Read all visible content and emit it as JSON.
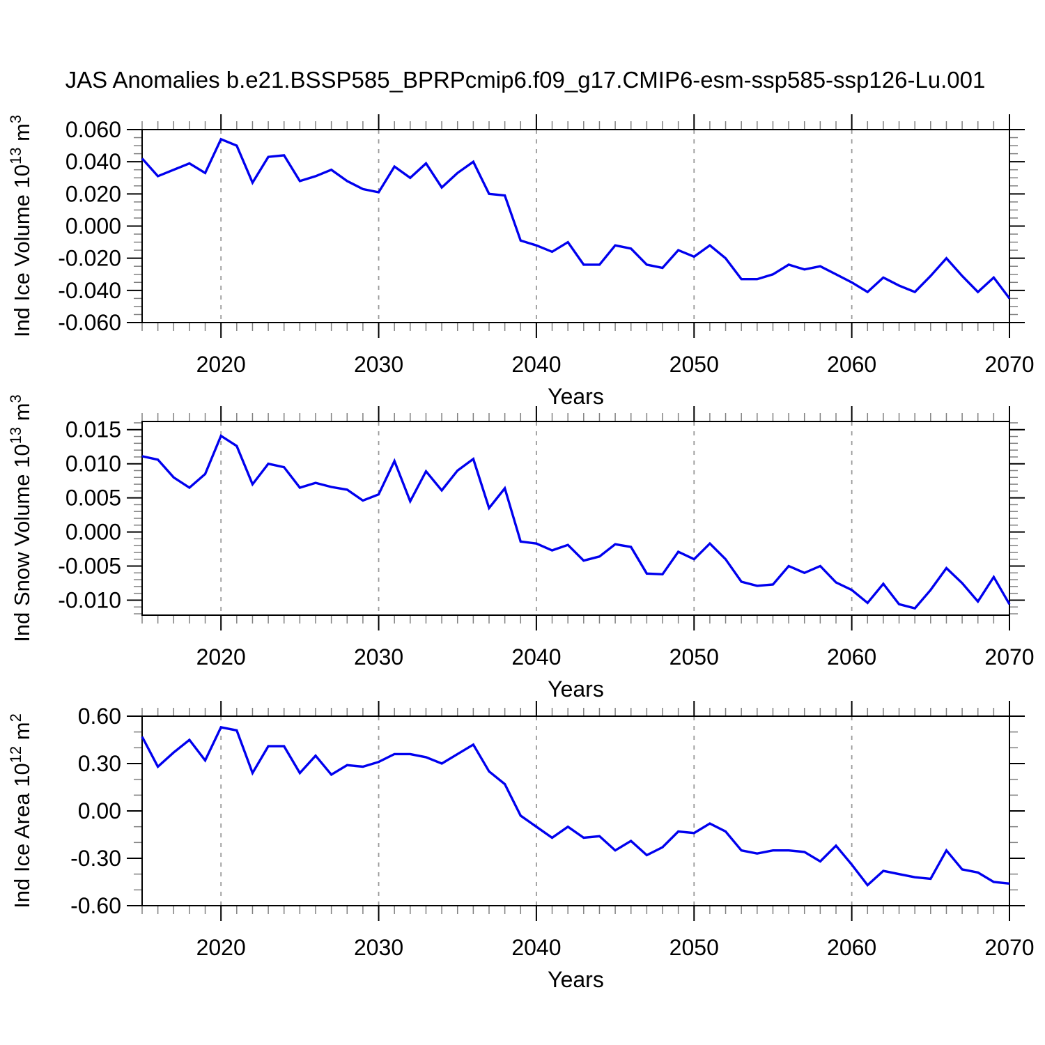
{
  "figure_title": "JAS Anomalies b.e21.BSSP585_BPRPcmip6.f09_g17.CMIP6-esm-ssp585-ssp126-Lu.001",
  "xlabel": "Years",
  "years": [
    2015,
    2016,
    2017,
    2018,
    2019,
    2020,
    2021,
    2022,
    2023,
    2024,
    2025,
    2026,
    2027,
    2028,
    2029,
    2030,
    2031,
    2032,
    2033,
    2034,
    2035,
    2036,
    2037,
    2038,
    2039,
    2040,
    2041,
    2042,
    2043,
    2044,
    2045,
    2046,
    2047,
    2048,
    2049,
    2050,
    2051,
    2052,
    2053,
    2054,
    2055,
    2056,
    2057,
    2058,
    2059,
    2060,
    2061,
    2062,
    2063,
    2064,
    2065,
    2066,
    2067,
    2068,
    2069,
    2070
  ],
  "xticks": [
    2020,
    2030,
    2040,
    2050,
    2060,
    2070
  ],
  "xlim": [
    2015,
    2070
  ],
  "colors": {
    "line": "#0000ee",
    "axis": "#000000",
    "grid": "#999999",
    "minor_tick": "#808080",
    "text": "#000000"
  },
  "chart_data": [
    {
      "type": "line",
      "name": "ind-ice-volume",
      "ylabel": "Ind Ice Volume 10^13 m^3",
      "ylabel_parts": [
        [
          "Ind Ice Volume 10",
          0
        ],
        [
          "13",
          1
        ],
        [
          " m",
          0
        ],
        [
          "3",
          1
        ]
      ],
      "xlabel": "Years",
      "ylim": [
        -0.06,
        0.06
      ],
      "ytick_values": [
        0.06,
        0.04,
        0.02,
        0.0,
        -0.02,
        -0.04,
        -0.06
      ],
      "ytick_labels": [
        "0.060",
        "0.040",
        "0.020",
        "0.000",
        "-0.020",
        "-0.040",
        "-0.060"
      ],
      "yminor_step": 0.005,
      "values": [
        0.042,
        0.031,
        0.035,
        0.039,
        0.033,
        0.054,
        0.05,
        0.027,
        0.043,
        0.044,
        0.028,
        0.031,
        0.035,
        0.028,
        0.023,
        0.021,
        0.037,
        0.03,
        0.039,
        0.024,
        0.033,
        0.04,
        0.02,
        0.019,
        -0.009,
        -0.012,
        -0.016,
        -0.01,
        -0.024,
        -0.024,
        -0.012,
        -0.014,
        -0.024,
        -0.026,
        -0.015,
        -0.019,
        -0.012,
        -0.02,
        -0.033,
        -0.033,
        -0.03,
        -0.024,
        -0.027,
        -0.025,
        -0.03,
        -0.035,
        -0.041,
        -0.032,
        -0.037,
        -0.041,
        -0.031,
        -0.02,
        -0.031,
        -0.041,
        -0.032,
        -0.045
      ]
    },
    {
      "type": "line",
      "name": "ind-snow-volume",
      "ylabel": "Ind Snow Volume 10^13 m^3",
      "ylabel_parts": [
        [
          "Ind Snow Volume 10",
          0
        ],
        [
          "13",
          1
        ],
        [
          " m",
          0
        ],
        [
          "3",
          1
        ]
      ],
      "xlabel": "Years",
      "ylim": [
        -0.0122,
        0.0162
      ],
      "ytick_values": [
        0.015,
        0.01,
        0.005,
        0.0,
        -0.005,
        -0.01
      ],
      "ytick_labels": [
        "0.015",
        "0.010",
        "0.005",
        "0.000",
        "-0.005",
        "-0.010"
      ],
      "yminor_step": 0.001,
      "values": [
        0.0111,
        0.0106,
        0.008,
        0.0065,
        0.0085,
        0.0141,
        0.0126,
        0.007,
        0.01,
        0.0095,
        0.0065,
        0.0072,
        0.0066,
        0.0062,
        0.0046,
        0.0055,
        0.0104,
        0.0045,
        0.0089,
        0.0061,
        0.009,
        0.0107,
        0.0035,
        0.0064,
        -0.0014,
        -0.0017,
        -0.0027,
        -0.0019,
        -0.0042,
        -0.0036,
        -0.0018,
        -0.0022,
        -0.0061,
        -0.0062,
        -0.0029,
        -0.004,
        -0.0017,
        -0.004,
        -0.0073,
        -0.0079,
        -0.0077,
        -0.005,
        -0.006,
        -0.005,
        -0.0074,
        -0.0085,
        -0.0104,
        -0.0076,
        -0.0106,
        -0.0112,
        -0.0085,
        -0.0053,
        -0.0075,
        -0.0102,
        -0.0066,
        -0.0106
      ]
    },
    {
      "type": "line",
      "name": "ind-ice-area",
      "ylabel": "Ind Ice Area 10^12 m^2",
      "ylabel_parts": [
        [
          "Ind Ice Area 10",
          0
        ],
        [
          "12",
          1
        ],
        [
          " m",
          0
        ],
        [
          "2",
          1
        ]
      ],
      "xlabel": "Years",
      "ylim": [
        -0.6,
        0.6
      ],
      "ytick_values": [
        0.6,
        0.3,
        0.0,
        -0.3,
        -0.6
      ],
      "ytick_labels": [
        "0.60",
        "0.30",
        "0.00",
        "-0.30",
        "-0.60"
      ],
      "yminor_step": 0.1,
      "values": [
        0.47,
        0.28,
        0.37,
        0.45,
        0.32,
        0.53,
        0.51,
        0.24,
        0.41,
        0.41,
        0.24,
        0.35,
        0.23,
        0.29,
        0.28,
        0.31,
        0.36,
        0.36,
        0.34,
        0.3,
        0.36,
        0.42,
        0.25,
        0.17,
        -0.03,
        -0.1,
        -0.17,
        -0.1,
        -0.17,
        -0.16,
        -0.25,
        -0.19,
        -0.28,
        -0.23,
        -0.13,
        -0.14,
        -0.08,
        -0.13,
        -0.25,
        -0.27,
        -0.25,
        -0.25,
        -0.26,
        -0.32,
        -0.22,
        -0.34,
        -0.47,
        -0.38,
        -0.4,
        -0.42,
        -0.43,
        -0.25,
        -0.37,
        -0.39,
        -0.45,
        -0.46
      ]
    }
  ]
}
